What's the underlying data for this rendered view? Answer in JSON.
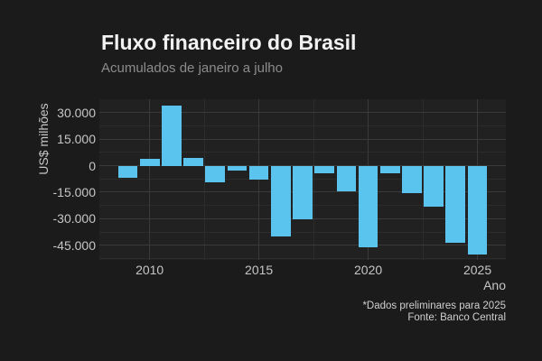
{
  "chart_data": {
    "type": "bar",
    "title": "Fluxo financeiro do Brasil",
    "subtitle": "Acumulados de janeiro a julho",
    "xlabel": "Ano",
    "ylabel": "US$ milhões",
    "caption": [
      "*Dados preliminares para 2025",
      "Fonte: Banco Central"
    ],
    "x": [
      2009,
      2010,
      2011,
      2012,
      2013,
      2014,
      2015,
      2016,
      2017,
      2018,
      2019,
      2020,
      2021,
      2022,
      2023,
      2024,
      2025
    ],
    "values": [
      -6700,
      3900,
      33900,
      4300,
      -9500,
      -2700,
      -7700,
      -39900,
      -30600,
      -4500,
      -14600,
      -46200,
      -4200,
      -15400,
      -23000,
      -43700,
      -50300
    ],
    "units": "US$ milhões",
    "xlim": [
      2007.7,
      2026.3
    ],
    "ylim": [
      -53300,
      37500
    ],
    "xticks": {
      "values": [
        2010,
        2015,
        2020,
        2025
      ],
      "labels": [
        "2010",
        "2015",
        "2020",
        "2025"
      ]
    },
    "yticks": {
      "values": [
        30000,
        15000,
        0,
        -15000,
        -30000,
        -45000
      ],
      "labels": [
        "30.000",
        "15.000",
        "0",
        "-15.000",
        "-30.000",
        "-45.000"
      ]
    },
    "minor_xticks": [
      2012.5,
      2017.5,
      2022.5
    ],
    "minor_yticks": [
      22500,
      7500,
      -7500,
      -22500,
      -37500,
      -52500
    ],
    "grid": true,
    "legend": "none",
    "bar_width": 0.9,
    "colors": {
      "background": "#1B1B1B",
      "panel": "#212121",
      "bar": "#5AC3EE",
      "grid_major": "#3A3A3A",
      "grid_minor": "#2C2C2C",
      "title": "#F2F2F2",
      "subtitle": "#8C8C8C",
      "tick_label": "#C6C6C6",
      "axis_title": "#C6C6C6",
      "caption": "#CFCFCF"
    }
  }
}
